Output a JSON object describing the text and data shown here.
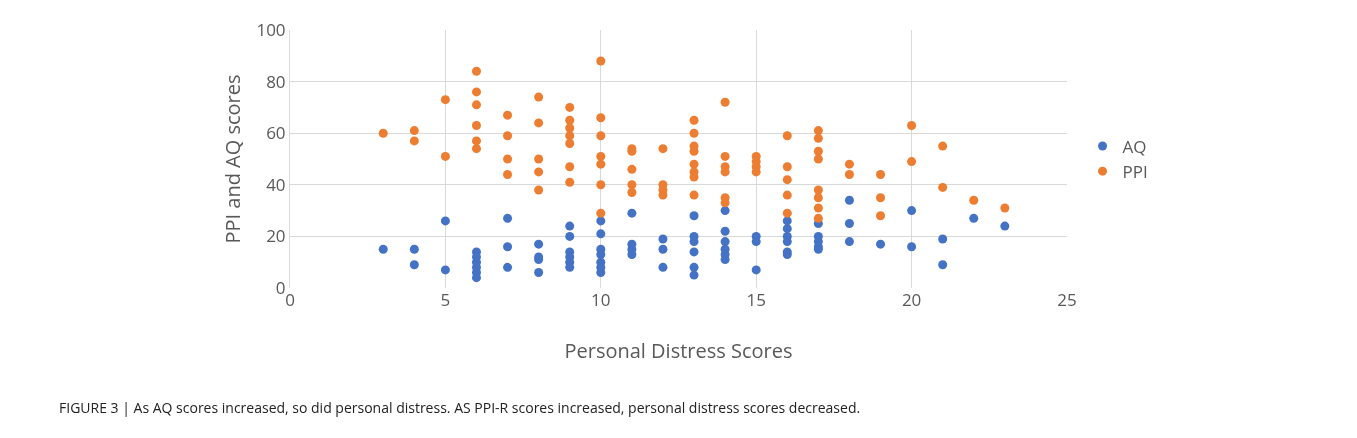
{
  "chart_data": {
    "type": "scatter",
    "xlabel": "Personal Distress Scores",
    "ylabel": "PPI and AQ scores",
    "annotations": [
      "FIGURE 3 | As AQ scores increased, so did personal distress. AS PPI-R scores increased, personal distress scores decreased."
    ],
    "xlim": [
      0,
      25
    ],
    "xticks": [
      0,
      5,
      10,
      15,
      20,
      25
    ],
    "ylim": [
      0,
      100
    ],
    "yticks": [
      0,
      20,
      40,
      60,
      80,
      100
    ],
    "grid": true,
    "legend": "right",
    "marker": "circle",
    "series": [
      {
        "name": "AQ",
        "color": "#4472c4",
        "x": [
          3,
          4,
          4,
          5,
          5,
          6,
          6,
          6,
          6,
          6,
          6,
          7,
          7,
          7,
          8,
          8,
          8,
          8,
          9,
          9,
          9,
          9,
          9,
          9,
          10,
          10,
          10,
          10,
          10,
          10,
          10,
          11,
          11,
          11,
          11,
          12,
          12,
          12,
          13,
          13,
          13,
          13,
          13,
          13,
          14,
          14,
          14,
          14,
          14,
          14,
          15,
          15,
          15,
          16,
          16,
          16,
          16,
          16,
          16,
          17,
          17,
          17,
          17,
          17,
          18,
          18,
          18,
          19,
          20,
          20,
          21,
          21,
          22,
          23
        ],
        "values": [
          15,
          15,
          9,
          26,
          7,
          14,
          12,
          10,
          8,
          6,
          4,
          27,
          16,
          8,
          17,
          12,
          11,
          6,
          24,
          20,
          14,
          12,
          10,
          8,
          26,
          21,
          15,
          13,
          10,
          8,
          6,
          29,
          17,
          15,
          13,
          19,
          15,
          8,
          28,
          20,
          18,
          14,
          8,
          5,
          30,
          22,
          18,
          15,
          13,
          11,
          20,
          18,
          7,
          26,
          23,
          20,
          18,
          14,
          13,
          25,
          20,
          18,
          16,
          15,
          34,
          25,
          18,
          17,
          30,
          16,
          19,
          9,
          27,
          24
        ]
      },
      {
        "name": "PPI",
        "color": "#ed7d31",
        "x": [
          3,
          4,
          4,
          5,
          5,
          6,
          6,
          6,
          6,
          6,
          6,
          7,
          7,
          7,
          7,
          8,
          8,
          8,
          8,
          8,
          9,
          9,
          9,
          9,
          9,
          9,
          9,
          10,
          10,
          10,
          10,
          10,
          10,
          10,
          11,
          11,
          11,
          11,
          11,
          12,
          12,
          12,
          12,
          13,
          13,
          13,
          13,
          13,
          13,
          13,
          13,
          14,
          14,
          14,
          14,
          14,
          14,
          15,
          15,
          15,
          15,
          16,
          16,
          16,
          16,
          16,
          17,
          17,
          17,
          17,
          17,
          17,
          17,
          17,
          18,
          18,
          19,
          19,
          19,
          20,
          20,
          21,
          21,
          22,
          23
        ],
        "values": [
          60,
          61,
          57,
          73,
          51,
          84,
          76,
          71,
          63,
          57,
          54,
          67,
          59,
          50,
          44,
          74,
          64,
          50,
          45,
          38,
          70,
          65,
          62,
          59,
          56,
          47,
          41,
          88,
          66,
          59,
          51,
          48,
          40,
          29,
          54,
          53,
          46,
          40,
          37,
          54,
          40,
          38,
          36,
          65,
          60,
          55,
          53,
          48,
          45,
          43,
          36,
          72,
          51,
          47,
          45,
          35,
          33,
          51,
          49,
          47,
          45,
          59,
          47,
          42,
          36,
          29,
          61,
          58,
          53,
          50,
          38,
          35,
          31,
          27,
          48,
          44,
          44,
          35,
          28,
          63,
          49,
          55,
          39,
          34,
          31
        ]
      }
    ]
  }
}
